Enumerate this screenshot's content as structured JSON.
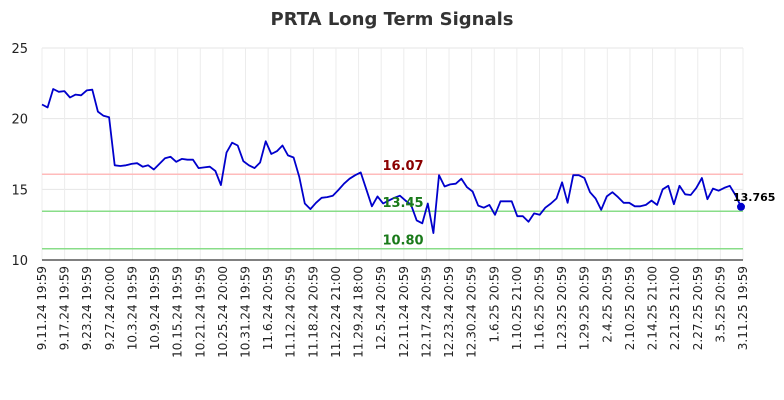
{
  "chart_data": {
    "type": "line",
    "title": "PRTA Long Term Signals",
    "xlabel": "",
    "ylabel": "",
    "ylim": [
      10,
      25
    ],
    "yticks": [
      10,
      15,
      20,
      25
    ],
    "grid": true,
    "legend": "none",
    "x_tick_labels": [
      "9.11.24 19:59",
      "9.17.24 19:59",
      "9.23.24 19:59",
      "9.27.24 20:00",
      "10.3.24 19:59",
      "10.9.24 19:59",
      "10.15.24 19:59",
      "10.21.24 19:59",
      "10.25.24 20:00",
      "10.31.24 19:59",
      "11.6.24 20:59",
      "11.12.24 20:59",
      "11.18.24 20:59",
      "11.22.24 21:00",
      "11.29.24 18:00",
      "12.5.24 20:59",
      "12.11.24 20:59",
      "12.17.24 20:59",
      "12.23.24 20:59",
      "12.30.24 20:59",
      "1.6.25 20:59",
      "1.10.25 21:00",
      "1.16.25 20:59",
      "1.23.25 20:59",
      "1.29.25 20:59",
      "2.4.25 20:59",
      "2.10.25 20:59",
      "2.14.25 21:00",
      "2.21.25 21:00",
      "2.27.25 20:59",
      "3.5.25 20:59",
      "3.11.25 19:59"
    ],
    "series": [
      {
        "color": "#0000cc",
        "values": [
          21.0,
          20.8,
          22.1,
          21.9,
          21.95,
          21.5,
          21.7,
          21.65,
          22.0,
          22.05,
          20.5,
          20.2,
          20.1,
          16.7,
          16.65,
          16.7,
          16.8,
          16.85,
          16.6,
          16.7,
          16.4,
          16.8,
          17.2,
          17.3,
          16.95,
          17.15,
          17.1,
          17.1,
          16.5,
          16.55,
          16.6,
          16.3,
          15.3,
          17.6,
          18.3,
          18.1,
          17.0,
          16.7,
          16.5,
          16.9,
          18.4,
          17.5,
          17.7,
          18.1,
          17.4,
          17.25,
          15.9,
          14.0,
          13.6,
          14.05,
          14.4,
          14.45,
          14.55,
          14.95,
          15.4,
          15.75,
          16.0,
          16.2,
          15.0,
          13.8,
          14.5,
          14.0,
          14.2,
          14.4,
          14.55,
          14.2,
          13.9,
          12.8,
          12.6,
          14.0,
          11.9,
          16.0,
          15.2,
          15.35,
          15.4,
          15.75,
          15.15,
          14.85,
          13.85,
          13.7,
          13.9,
          13.2,
          14.15,
          14.15,
          14.15,
          13.1,
          13.1,
          12.7,
          13.3,
          13.2,
          13.7,
          14.0,
          14.35,
          15.5,
          14.05,
          16.0,
          16.0,
          15.8,
          14.8,
          14.35,
          13.55,
          14.5,
          14.8,
          14.45,
          14.05,
          14.05,
          13.8,
          13.8,
          13.9,
          14.2,
          13.9,
          15.0,
          15.25,
          13.95,
          15.25,
          14.65,
          14.6,
          15.1,
          15.8,
          14.3,
          15.05,
          14.9,
          15.1,
          15.25,
          14.6,
          13.765
        ]
      }
    ],
    "reference_lines": [
      {
        "value": 16.07,
        "label": "16.07",
        "line_color": "#ffbbbb",
        "label_color": "#8b0000"
      },
      {
        "value": 13.45,
        "label": "13.45",
        "line_color": "#88dd88",
        "label_color": "#1a7a1a"
      },
      {
        "value": 10.8,
        "label": "10.80",
        "line_color": "#88dd88",
        "label_color": "#1a7a1a"
      }
    ],
    "last_value_label": "13.765"
  }
}
